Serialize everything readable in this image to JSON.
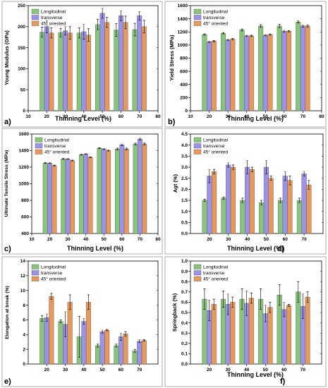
{
  "colors": {
    "longitudinal": "#88c57c",
    "transverse": "#9b93e8",
    "oriented45": "#e6995a",
    "transverse_topcap": "#d94545"
  },
  "chart_data": [
    {
      "panel": "a)",
      "type": "bar",
      "xlabel": "Thinning Level (%)",
      "ylabel": "Young Modulus (GPa)",
      "categories": [
        20,
        30,
        40,
        50,
        60,
        70
      ],
      "xlim": [
        10,
        80
      ],
      "xticks": [
        10,
        20,
        30,
        40,
        50,
        60,
        70,
        80
      ],
      "ylim": [
        0,
        250
      ],
      "yticks": [
        0,
        50,
        100,
        150,
        200,
        250
      ],
      "grid": false,
      "legend_position": "top-left",
      "series": [
        {
          "name": "Longitudinal",
          "values": [
            187,
            186,
            185,
            205,
            192,
            193
          ],
          "errors": [
            12,
            10,
            12,
            12,
            15,
            15
          ]
        },
        {
          "name": "transverse",
          "values": [
            200,
            190,
            188,
            232,
            226,
            226
          ],
          "errors": [
            15,
            10,
            18,
            12,
            12,
            10
          ]
        },
        {
          "name": "45° oriented",
          "values": [
            185,
            185,
            180,
            210,
            210,
            200
          ],
          "errors": [
            12,
            15,
            15,
            12,
            15,
            15
          ]
        }
      ]
    },
    {
      "panel": "b)",
      "type": "bar",
      "xlabel": "Thinning Level (%)",
      "ylabel": "Yield Stress (MPa)",
      "categories": [
        20,
        30,
        40,
        50,
        60,
        70
      ],
      "xlim": [
        10,
        80
      ],
      "xticks": [
        10,
        20,
        30,
        40,
        50,
        60,
        70,
        80
      ],
      "ylim": [
        0,
        1600
      ],
      "yticks": [
        0,
        200,
        400,
        600,
        800,
        1000,
        1200,
        1400,
        1600
      ],
      "grid": false,
      "legend_position": "top-left",
      "series": [
        {
          "name": "Longitudinal",
          "values": [
            1160,
            1180,
            1230,
            1290,
            1290,
            1350
          ],
          "errors": [
            10,
            10,
            15,
            20,
            25,
            15
          ]
        },
        {
          "name": "transverse",
          "values": [
            1050,
            1080,
            1140,
            1150,
            1210,
            1290
          ],
          "errors": [
            10,
            10,
            10,
            10,
            15,
            15
          ]
        },
        {
          "name": "45° oriented",
          "values": [
            1060,
            1090,
            1140,
            1160,
            1210,
            1290
          ],
          "errors": [
            10,
            10,
            10,
            10,
            10,
            15
          ]
        }
      ]
    },
    {
      "panel": "c)",
      "type": "bar",
      "xlabel": "Thinning Level (%)",
      "ylabel": "Ultimate Tensile Stress (MPa)",
      "categories": [
        20,
        30,
        40,
        50,
        60,
        70
      ],
      "xlim": [
        10,
        80
      ],
      "xticks": [
        10,
        20,
        30,
        40,
        50,
        60,
        70,
        80
      ],
      "ylim": [
        400,
        1600
      ],
      "yticks": [
        400,
        600,
        800,
        1000,
        1200,
        1400,
        1600
      ],
      "grid": false,
      "legend_position": "top-left",
      "series": [
        {
          "name": "Longitudinal",
          "values": [
            1250,
            1300,
            1350,
            1430,
            1420,
            1480
          ],
          "errors": [
            5,
            5,
            5,
            5,
            10,
            10
          ]
        },
        {
          "name": "transverse",
          "values": [
            1250,
            1300,
            1360,
            1420,
            1470,
            1540
          ],
          "errors": [
            5,
            5,
            5,
            5,
            10,
            10
          ]
        },
        {
          "name": "45° oriented",
          "values": [
            1220,
            1280,
            1320,
            1400,
            1420,
            1480
          ],
          "errors": [
            5,
            5,
            5,
            5,
            10,
            10
          ]
        }
      ]
    },
    {
      "panel": "d)",
      "type": "bar",
      "xlabel": "Thinning Level (%)",
      "ylabel": "Agt (%)",
      "categories": [
        20,
        30,
        40,
        50,
        60,
        70
      ],
      "ylim": [
        0,
        4.5
      ],
      "yticks": [
        0,
        0.5,
        1.0,
        1.5,
        2.0,
        2.5,
        3.0,
        3.5,
        4.0,
        4.5
      ],
      "grid": false,
      "legend_position": "top-left",
      "series": [
        {
          "name": "Longitudinal",
          "values": [
            1.5,
            1.6,
            1.5,
            1.4,
            1.5,
            1.5
          ],
          "errors": [
            0.05,
            0.05,
            0.1,
            0.1,
            0.1,
            0.1
          ]
        },
        {
          "name": "transverse",
          "values": [
            2.6,
            3.1,
            3.0,
            3.0,
            2.6,
            2.7
          ],
          "errors": [
            0.3,
            0.1,
            0.3,
            0.3,
            0.2,
            0.1
          ]
        },
        {
          "name": "45° oriented",
          "values": [
            2.8,
            3.0,
            2.9,
            2.5,
            2.4,
            2.2
          ],
          "errors": [
            0.1,
            0.1,
            0.1,
            0.1,
            0.2,
            0.2
          ]
        }
      ]
    },
    {
      "panel": "e)",
      "type": "bar",
      "xlabel": "",
      "ylabel": "Elongation at break (%)",
      "categories": [
        20,
        30,
        40,
        50,
        60,
        70
      ],
      "ylim": [
        0,
        14
      ],
      "yticks": [
        0,
        2,
        4,
        6,
        8,
        10,
        12,
        14
      ],
      "grid": false,
      "legend_position": "top-left",
      "series": [
        {
          "name": "Longitudinal",
          "values": [
            6.2,
            5.8,
            3.7,
            2.5,
            2.5,
            1.8
          ],
          "errors": [
            0.4,
            0.2,
            2.8,
            0.2,
            0.2,
            0.2
          ]
        },
        {
          "name": "transverse",
          "values": [
            6.3,
            5.4,
            5.8,
            4.4,
            3.7,
            3.1
          ],
          "errors": [
            0.5,
            1.7,
            0.4,
            0.2,
            0.5,
            0.2
          ]
        },
        {
          "name": "45° oriented",
          "values": [
            9.2,
            8.4,
            8.4,
            4.6,
            4.1,
            3.2
          ],
          "errors": [
            0.4,
            1.0,
            1.0,
            0.1,
            0.3,
            0.1
          ]
        }
      ]
    },
    {
      "panel": "f)",
      "type": "bar",
      "xlabel": "Thinning Level (%)",
      "ylabel": "Springback (%)",
      "categories": [
        20,
        30,
        40,
        50,
        60,
        70
      ],
      "ylim": [
        0,
        1.0
      ],
      "yticks": [
        0,
        0.1,
        0.2,
        0.3,
        0.4,
        0.5,
        0.6,
        0.7,
        0.8,
        0.9,
        1.0
      ],
      "grid": false,
      "legend_position": "top-left",
      "series": [
        {
          "name": "Longitudinal",
          "values": [
            0.63,
            0.63,
            0.63,
            0.63,
            0.67,
            0.7
          ],
          "errors": [
            0.1,
            0.08,
            0.1,
            0.1,
            0.1,
            0.1
          ]
        },
        {
          "name": "transverse",
          "values": [
            0.52,
            0.58,
            0.59,
            0.49,
            0.53,
            0.56
          ],
          "errors": [
            0.1,
            0.1,
            0.12,
            0.08,
            0.07,
            0.12
          ]
        },
        {
          "name": "45° oriented",
          "values": [
            0.58,
            0.6,
            0.64,
            0.55,
            0.57,
            0.65
          ],
          "errors": [
            0.05,
            0.05,
            0.05,
            0.05,
            0.01,
            0.05
          ]
        }
      ]
    }
  ]
}
